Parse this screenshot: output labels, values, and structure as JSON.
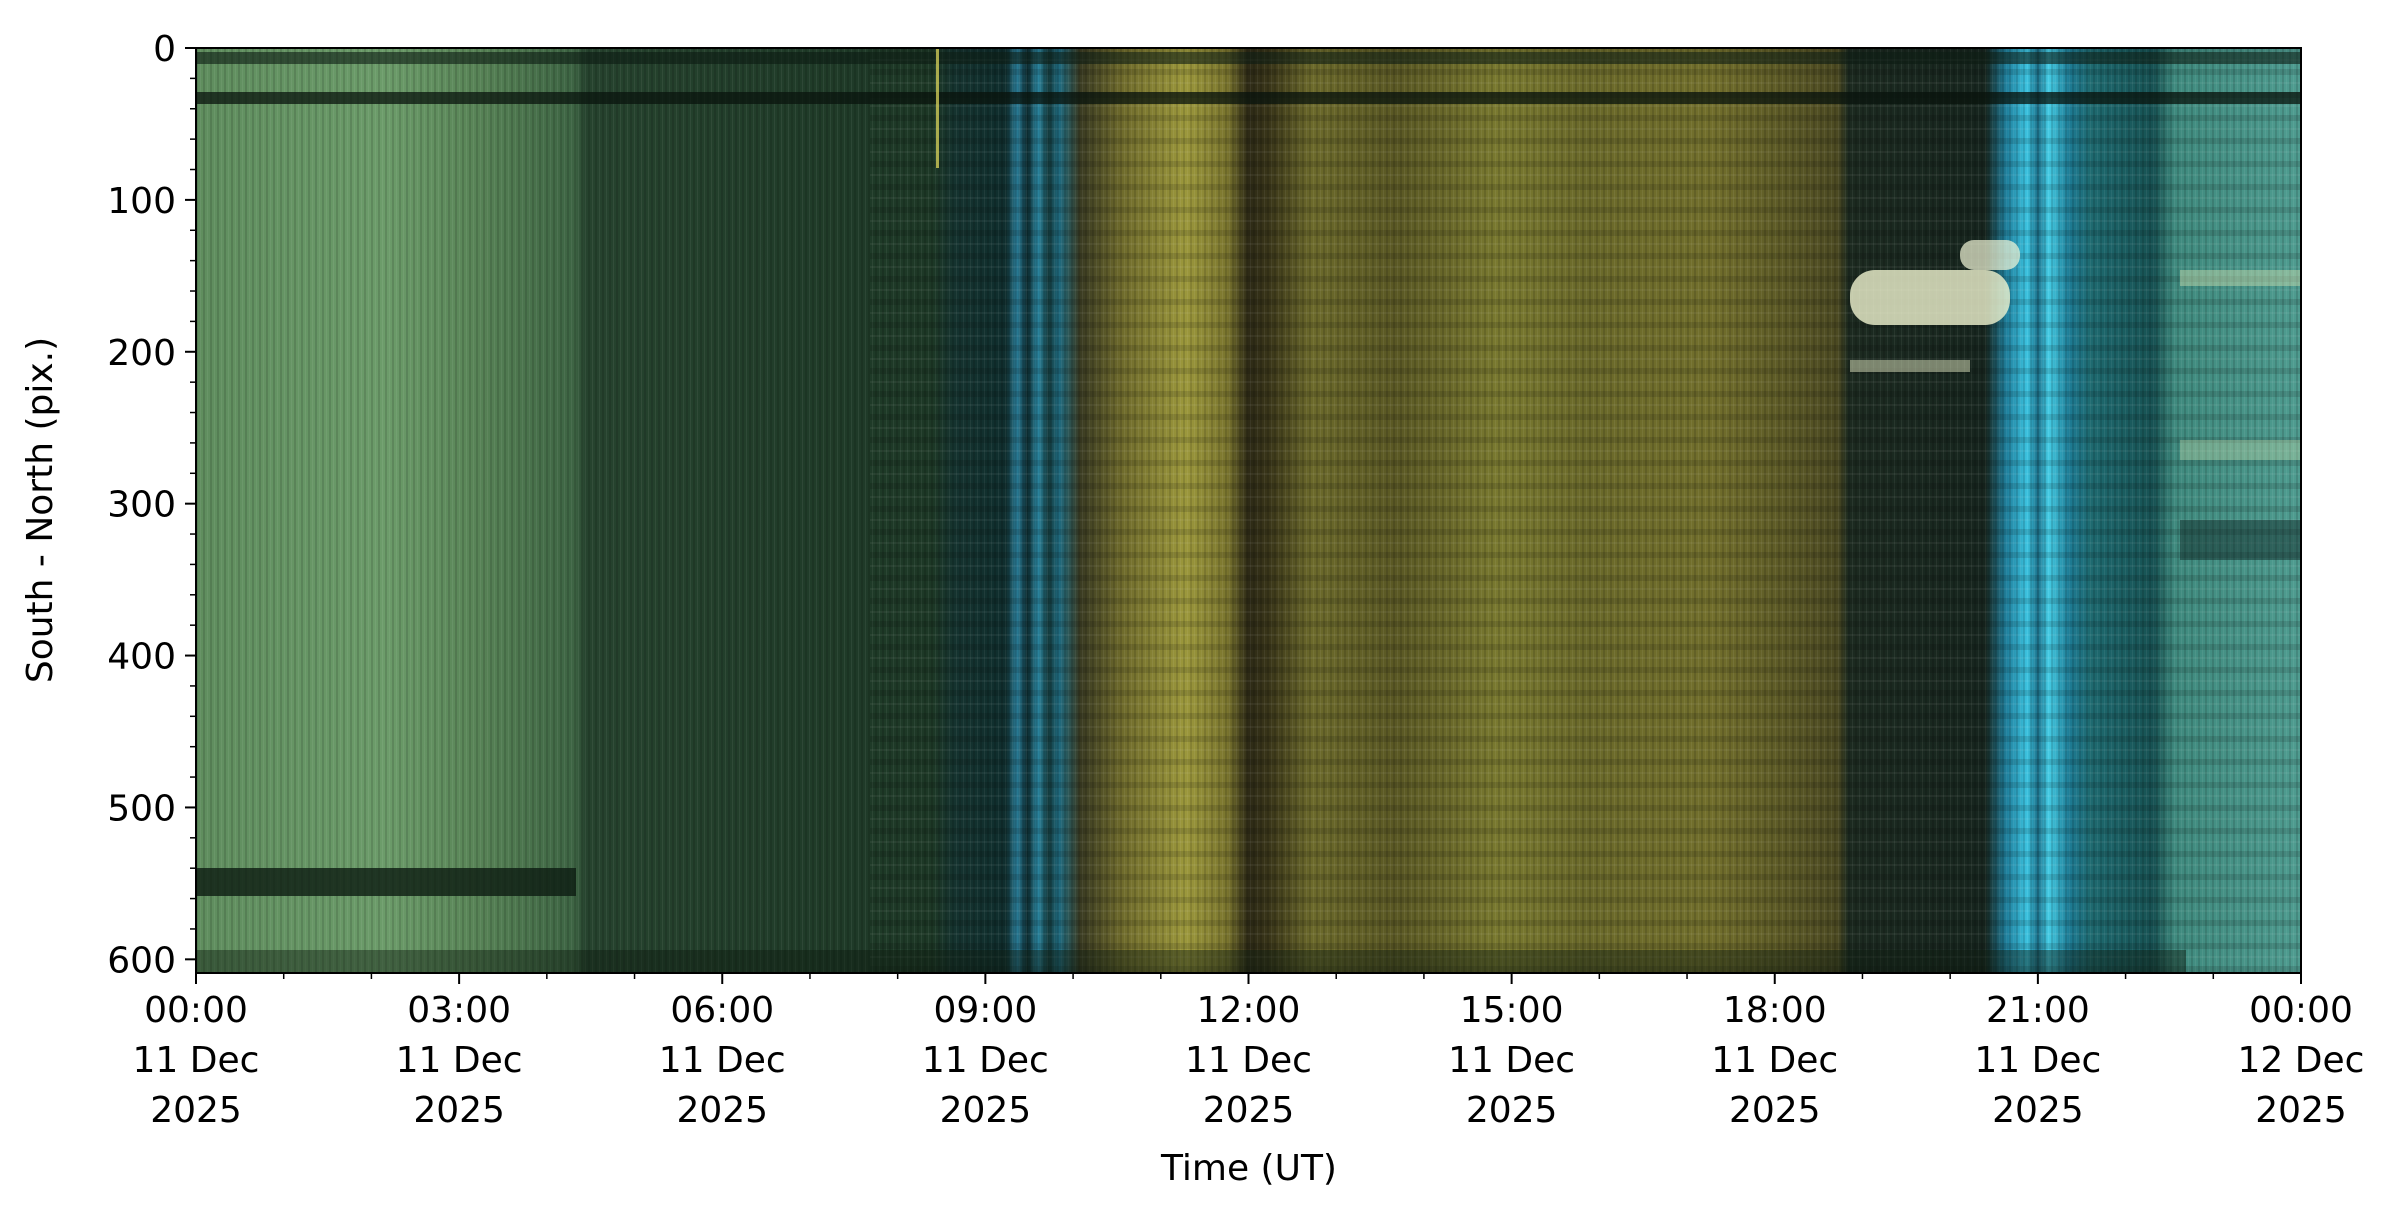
{
  "chart_data": {
    "type": "image",
    "x_label": "Time (UT)",
    "y_label": "South - North (pix.)",
    "xlim": [
      "2025-12-11T00:00",
      "2025-12-12T00:00"
    ],
    "xticks": [
      {
        "value": "2025-12-11T00:00",
        "label": "00:00\n11 Dec\n2025"
      },
      {
        "value": "2025-12-11T03:00",
        "label": "03:00\n11 Dec\n2025"
      },
      {
        "value": "2025-12-11T06:00",
        "label": "06:00\n11 Dec\n2025"
      },
      {
        "value": "2025-12-11T09:00",
        "label": "09:00\n11 Dec\n2025"
      },
      {
        "value": "2025-12-11T12:00",
        "label": "12:00\n11 Dec\n2025"
      },
      {
        "value": "2025-12-11T15:00",
        "label": "15:00\n11 Dec\n2025"
      },
      {
        "value": "2025-12-11T18:00",
        "label": "18:00\n11 Dec\n2025"
      },
      {
        "value": "2025-12-11T21:00",
        "label": "21:00\n11 Dec\n2025"
      },
      {
        "value": "2025-12-12T00:00",
        "label": "00:00\n12 Dec\n2025"
      }
    ],
    "x_minor_step_hours": 1,
    "ylim": [
      0,
      609
    ],
    "y_inverted": true,
    "yticks": [
      0,
      100,
      200,
      300,
      400,
      500,
      600
    ],
    "y_minor_step": 20
  }
}
